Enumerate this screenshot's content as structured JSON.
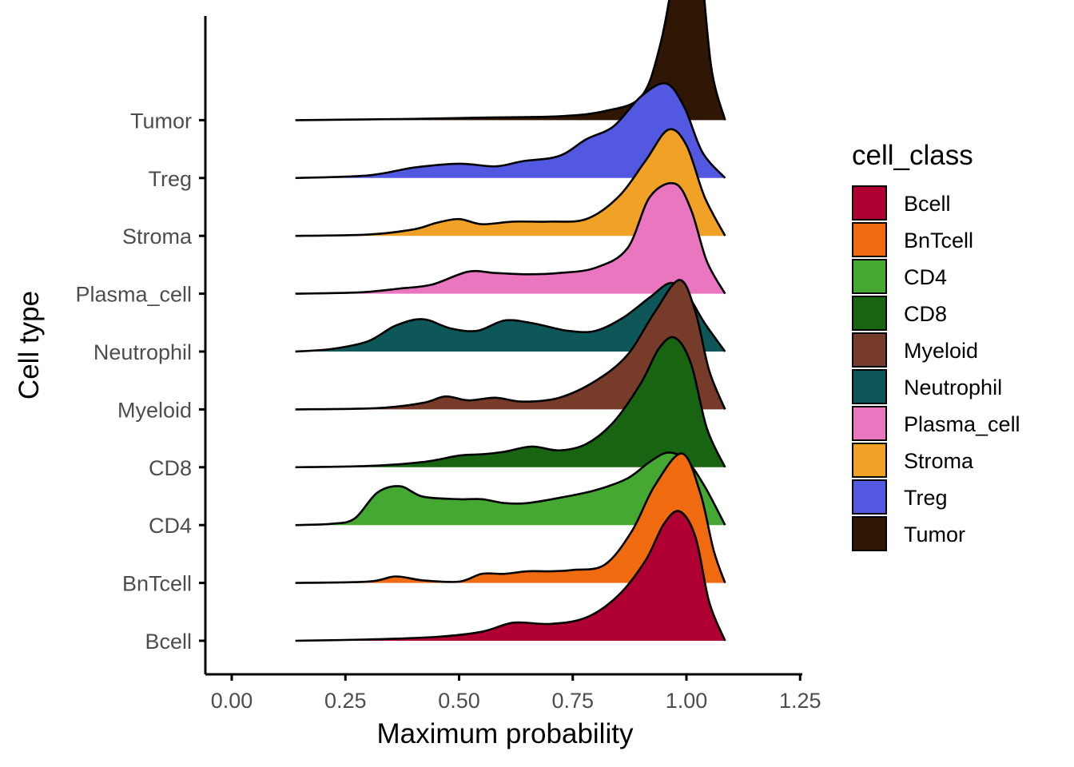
{
  "chart_data": {
    "type": "ridgeline",
    "xlabel": "Maximum probability",
    "ylabel": "Cell type",
    "xlim": [
      -0.06,
      1.25
    ],
    "x_ticks": [
      "0.00",
      "0.25",
      "0.50",
      "0.75",
      "1.00",
      "1.25"
    ],
    "x_tick_values": [
      0,
      0.25,
      0.5,
      0.75,
      1.0,
      1.25
    ],
    "density_range": [
      0.14,
      1.085
    ],
    "grid": false,
    "legend": {
      "title": "cell_class",
      "placement": "right",
      "entries": [
        "Bcell",
        "BnTcell",
        "CD4",
        "CD8",
        "Myeloid",
        "Neutrophil",
        "Plasma_cell",
        "Stroma",
        "Treg",
        "Tumor"
      ]
    },
    "series": [
      {
        "name": "Bcell",
        "color": "#B00032",
        "density": [
          [
            0.14,
            0
          ],
          [
            0.3,
            0.01
          ],
          [
            0.45,
            0.03
          ],
          [
            0.55,
            0.07
          ],
          [
            0.62,
            0.14
          ],
          [
            0.7,
            0.13
          ],
          [
            0.78,
            0.18
          ],
          [
            0.85,
            0.35
          ],
          [
            0.91,
            0.62
          ],
          [
            0.95,
            0.9
          ],
          [
            0.985,
            1.0
          ],
          [
            1.02,
            0.8
          ],
          [
            1.05,
            0.3
          ],
          [
            1.085,
            0
          ]
        ]
      },
      {
        "name": "BnTcell",
        "color": "#F06B10",
        "density": [
          [
            0.14,
            0
          ],
          [
            0.3,
            0.01
          ],
          [
            0.36,
            0.05
          ],
          [
            0.42,
            0.02
          ],
          [
            0.5,
            0.01
          ],
          [
            0.55,
            0.07
          ],
          [
            0.6,
            0.07
          ],
          [
            0.65,
            0.09
          ],
          [
            0.7,
            0.09
          ],
          [
            0.75,
            0.1
          ],
          [
            0.82,
            0.14
          ],
          [
            0.88,
            0.4
          ],
          [
            0.93,
            0.75
          ],
          [
            0.99,
            1.0
          ],
          [
            1.03,
            0.7
          ],
          [
            1.06,
            0.25
          ],
          [
            1.085,
            0
          ]
        ]
      },
      {
        "name": "CD4",
        "color": "#44A832",
        "density": [
          [
            0.14,
            0
          ],
          [
            0.22,
            0.01
          ],
          [
            0.27,
            0.05
          ],
          [
            0.32,
            0.25
          ],
          [
            0.37,
            0.3
          ],
          [
            0.42,
            0.22
          ],
          [
            0.5,
            0.2
          ],
          [
            0.55,
            0.2
          ],
          [
            0.6,
            0.17
          ],
          [
            0.65,
            0.17
          ],
          [
            0.72,
            0.21
          ],
          [
            0.8,
            0.27
          ],
          [
            0.87,
            0.36
          ],
          [
            0.92,
            0.49
          ],
          [
            0.96,
            0.56
          ],
          [
            1.0,
            0.5
          ],
          [
            1.04,
            0.3
          ],
          [
            1.085,
            0
          ]
        ]
      },
      {
        "name": "CD8",
        "color": "#186410",
        "density": [
          [
            0.14,
            0
          ],
          [
            0.3,
            0.01
          ],
          [
            0.42,
            0.04
          ],
          [
            0.5,
            0.09
          ],
          [
            0.55,
            0.1
          ],
          [
            0.6,
            0.12
          ],
          [
            0.66,
            0.16
          ],
          [
            0.72,
            0.13
          ],
          [
            0.78,
            0.18
          ],
          [
            0.84,
            0.35
          ],
          [
            0.9,
            0.65
          ],
          [
            0.94,
            0.92
          ],
          [
            0.975,
            1.0
          ],
          [
            1.01,
            0.8
          ],
          [
            1.045,
            0.3
          ],
          [
            1.085,
            0
          ]
        ]
      },
      {
        "name": "Myeloid",
        "color": "#763B29",
        "density": [
          [
            0.14,
            0
          ],
          [
            0.32,
            0.01
          ],
          [
            0.42,
            0.05
          ],
          [
            0.47,
            0.1
          ],
          [
            0.52,
            0.07
          ],
          [
            0.58,
            0.09
          ],
          [
            0.64,
            0.06
          ],
          [
            0.72,
            0.09
          ],
          [
            0.8,
            0.22
          ],
          [
            0.87,
            0.42
          ],
          [
            0.93,
            0.75
          ],
          [
            0.985,
            1.0
          ],
          [
            1.02,
            0.75
          ],
          [
            1.05,
            0.3
          ],
          [
            1.085,
            0
          ]
        ]
      },
      {
        "name": "Neutrophil",
        "color": "#0D5759",
        "density": [
          [
            0.14,
            0
          ],
          [
            0.22,
            0.02
          ],
          [
            0.3,
            0.08
          ],
          [
            0.36,
            0.2
          ],
          [
            0.42,
            0.25
          ],
          [
            0.48,
            0.18
          ],
          [
            0.54,
            0.16
          ],
          [
            0.6,
            0.24
          ],
          [
            0.66,
            0.22
          ],
          [
            0.74,
            0.16
          ],
          [
            0.8,
            0.16
          ],
          [
            0.86,
            0.26
          ],
          [
            0.92,
            0.42
          ],
          [
            0.965,
            0.53
          ],
          [
            1.0,
            0.45
          ],
          [
            1.04,
            0.22
          ],
          [
            1.085,
            0
          ]
        ]
      },
      {
        "name": "Plasma_cell",
        "color": "#EA76C0",
        "density": [
          [
            0.14,
            0
          ],
          [
            0.28,
            0.01
          ],
          [
            0.37,
            0.04
          ],
          [
            0.44,
            0.07
          ],
          [
            0.52,
            0.17
          ],
          [
            0.58,
            0.16
          ],
          [
            0.65,
            0.15
          ],
          [
            0.72,
            0.16
          ],
          [
            0.8,
            0.2
          ],
          [
            0.87,
            0.35
          ],
          [
            0.92,
            0.75
          ],
          [
            0.975,
            0.85
          ],
          [
            1.01,
            0.65
          ],
          [
            1.045,
            0.25
          ],
          [
            1.085,
            0
          ]
        ]
      },
      {
        "name": "Stroma",
        "color": "#F0A126",
        "density": [
          [
            0.14,
            0
          ],
          [
            0.3,
            0.01
          ],
          [
            0.4,
            0.05
          ],
          [
            0.45,
            0.1
          ],
          [
            0.5,
            0.13
          ],
          [
            0.55,
            0.09
          ],
          [
            0.62,
            0.11
          ],
          [
            0.7,
            0.11
          ],
          [
            0.78,
            0.13
          ],
          [
            0.85,
            0.3
          ],
          [
            0.91,
            0.58
          ],
          [
            0.96,
            0.82
          ],
          [
            1.0,
            0.7
          ],
          [
            1.04,
            0.3
          ],
          [
            1.085,
            0
          ]
        ]
      },
      {
        "name": "Treg",
        "color": "#5258E0",
        "density": [
          [
            0.14,
            0
          ],
          [
            0.3,
            0.02
          ],
          [
            0.4,
            0.08
          ],
          [
            0.5,
            0.11
          ],
          [
            0.58,
            0.09
          ],
          [
            0.64,
            0.13
          ],
          [
            0.72,
            0.17
          ],
          [
            0.78,
            0.3
          ],
          [
            0.84,
            0.4
          ],
          [
            0.9,
            0.63
          ],
          [
            0.955,
            0.73
          ],
          [
            0.995,
            0.55
          ],
          [
            1.035,
            0.2
          ],
          [
            1.085,
            0
          ]
        ]
      },
      {
        "name": "Tumor",
        "color": "#301604",
        "density": [
          [
            0.14,
            0
          ],
          [
            0.4,
            0.01
          ],
          [
            0.55,
            0.02
          ],
          [
            0.72,
            0.03
          ],
          [
            0.82,
            0.07
          ],
          [
            0.9,
            0.18
          ],
          [
            0.94,
            0.55
          ],
          [
            0.97,
            1.1
          ],
          [
            1.0,
            1.85
          ],
          [
            1.03,
            1.25
          ],
          [
            1.055,
            0.4
          ],
          [
            1.085,
            0
          ]
        ]
      }
    ]
  }
}
